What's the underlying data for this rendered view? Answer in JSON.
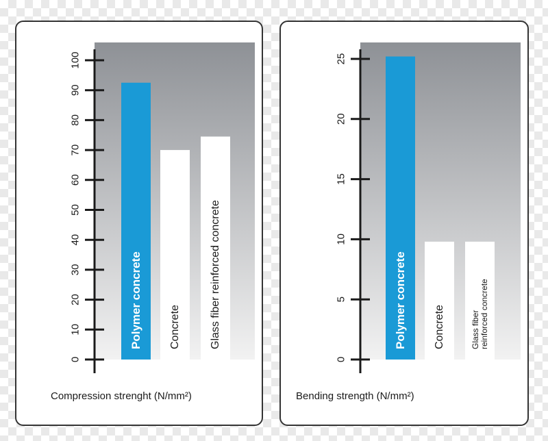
{
  "chart_data": [
    {
      "type": "bar",
      "categories": [
        "Polymer concrete",
        "Concrete",
        "Glass fiber reinforced concrete"
      ],
      "values": [
        92.5,
        70,
        74.5
      ],
      "bar_colors": [
        "#1a9ad6",
        "#ffffff",
        "#ffffff"
      ],
      "label_colors": [
        "#ffffff",
        "#1a1a1a",
        "#1a1a1a"
      ],
      "label_bold": [
        true,
        false,
        false
      ],
      "xlabel": "Compression strenght (N/mm²)",
      "ylim": [
        0,
        100
      ],
      "yticks": [
        "0",
        "10",
        "20",
        "30",
        "40",
        "50",
        "60",
        "70",
        "80",
        "90",
        "100"
      ],
      "grid": false
    },
    {
      "type": "bar",
      "categories": [
        "Polymer concrete",
        "Concrete",
        "Glass fiber reinforced concrete"
      ],
      "category_label_lines": [
        [
          "Polymer concrete"
        ],
        [
          "Concrete"
        ],
        [
          "Glass fiber",
          "reinforced concrete"
        ]
      ],
      "values": [
        25.2,
        9.8,
        9.8
      ],
      "bar_colors": [
        "#1a9ad6",
        "#ffffff",
        "#ffffff"
      ],
      "label_colors": [
        "#ffffff",
        "#1a1a1a",
        "#1a1a1a"
      ],
      "label_bold": [
        true,
        false,
        false
      ],
      "xlabel": "Bending strength (N/mm²)",
      "ylim": [
        0,
        25
      ],
      "yticks": [
        "0",
        "5",
        "10",
        "15",
        "20",
        "25"
      ],
      "grid": false
    }
  ],
  "colors": {
    "background_top": "#8e9196",
    "background_bottom": "#f2f2f2",
    "accent": "#1a9ad6"
  }
}
